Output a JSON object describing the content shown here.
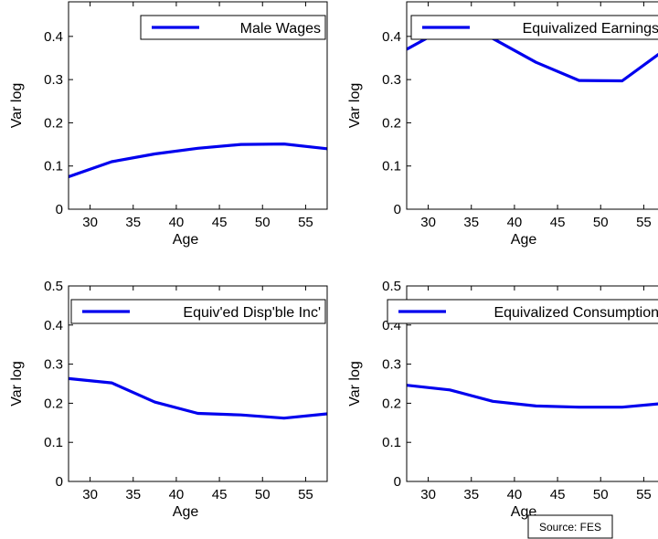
{
  "source_note": "Source: FES",
  "style": {
    "line_color": "#0000ee",
    "axis_color": "#000000"
  },
  "chart_data": [
    {
      "type": "line",
      "xlabel": "Age",
      "ylabel": "Var log",
      "xlim": [
        27.5,
        57.5
      ],
      "ylim": [
        0,
        0.48
      ],
      "xticks": [
        "30",
        "35",
        "40",
        "45",
        "50",
        "55"
      ],
      "yticks": [
        "0",
        "0.1",
        "0.2",
        "0.3",
        "0.4"
      ],
      "legend_position": "top-right",
      "series": [
        {
          "name": "Male Wages",
          "x": [
            27.5,
            32.5,
            37.5,
            42.5,
            47.5,
            52.5,
            57.5
          ],
          "y": [
            0.075,
            0.11,
            0.128,
            0.141,
            0.15,
            0.151,
            0.14
          ]
        }
      ]
    },
    {
      "type": "line",
      "xlabel": "Age",
      "ylabel": "Var log",
      "xlim": [
        27.5,
        57.5
      ],
      "ylim": [
        0,
        0.48
      ],
      "xticks": [
        "30",
        "35",
        "40",
        "45",
        "50",
        "55"
      ],
      "yticks": [
        "0",
        "0.1",
        "0.2",
        "0.3",
        "0.4"
      ],
      "legend_position": "top-right",
      "series": [
        {
          "name": "Equivalized Earnings",
          "x": [
            27.5,
            32.5,
            37.5,
            42.5,
            47.5,
            52.5,
            57.5
          ],
          "y": [
            0.37,
            0.425,
            0.395,
            0.34,
            0.298,
            0.297,
            0.37
          ]
        }
      ]
    },
    {
      "type": "line",
      "xlabel": "Age",
      "ylabel": "Var log",
      "xlim": [
        27.5,
        57.5
      ],
      "ylim": [
        0,
        0.5
      ],
      "xticks": [
        "30",
        "35",
        "40",
        "45",
        "50",
        "55"
      ],
      "yticks": [
        "0",
        "0.1",
        "0.2",
        "0.3",
        "0.4",
        "0.5"
      ],
      "legend_position": "top-right",
      "series": [
        {
          "name": "Equiv'ed Disp'ble Inc'",
          "x": [
            27.5,
            32.5,
            37.5,
            42.5,
            47.5,
            52.5,
            57.5
          ],
          "y": [
            0.263,
            0.252,
            0.203,
            0.174,
            0.17,
            0.162,
            0.173
          ]
        }
      ]
    },
    {
      "type": "line",
      "xlabel": "Age",
      "ylabel": "Var log",
      "xlim": [
        27.5,
        57.5
      ],
      "ylim": [
        0,
        0.5
      ],
      "xticks": [
        "30",
        "35",
        "40",
        "45",
        "50",
        "55"
      ],
      "yticks": [
        "0",
        "0.1",
        "0.2",
        "0.3",
        "0.4",
        "0.5"
      ],
      "legend_position": "top-right",
      "series": [
        {
          "name": "Equivalized Consumption",
          "x": [
            27.5,
            32.5,
            37.5,
            42.5,
            47.5,
            52.5,
            57.5
          ],
          "y": [
            0.246,
            0.234,
            0.205,
            0.193,
            0.19,
            0.19,
            0.2
          ]
        }
      ]
    }
  ]
}
